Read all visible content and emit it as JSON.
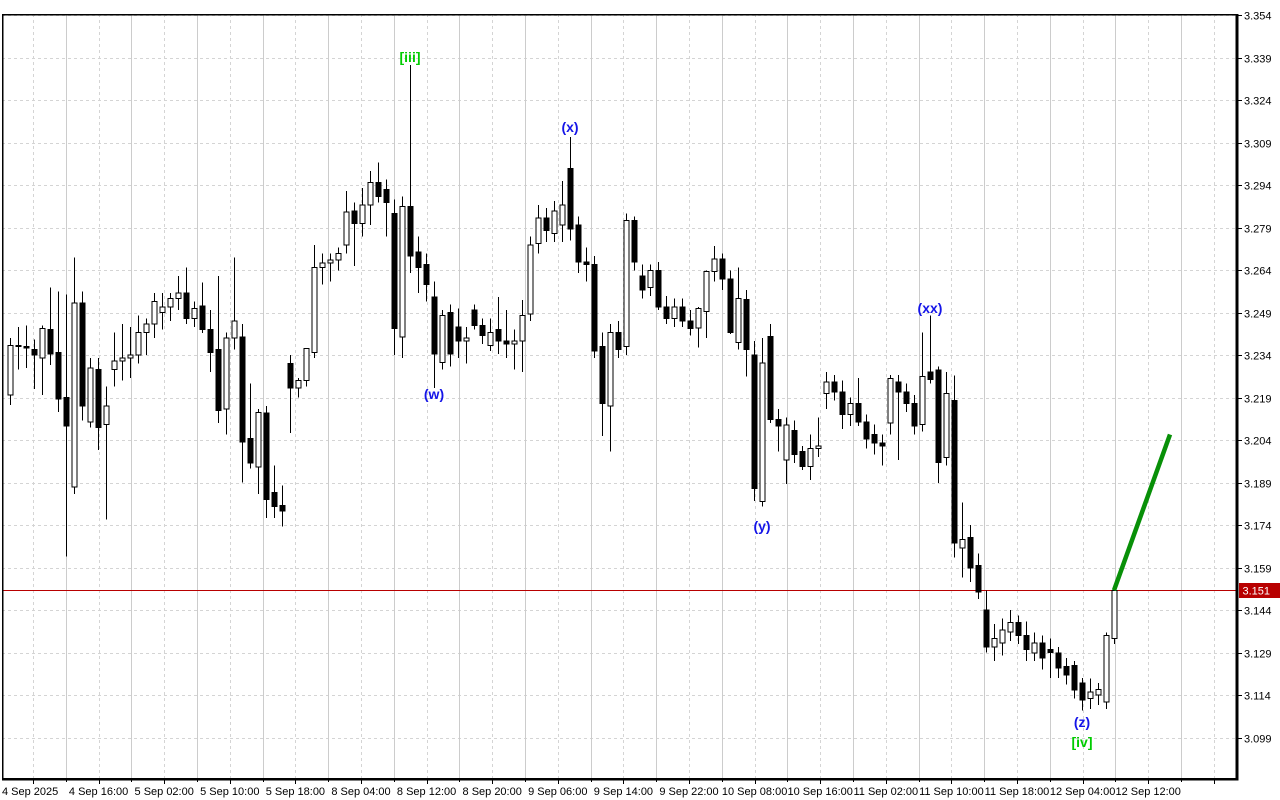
{
  "chart_data": {
    "type": "candlestick",
    "title": "",
    "platform_style": "metatrader",
    "colors": {
      "background": "#ffffff",
      "foreground": "#000000",
      "grid": "#d4d4d4",
      "grid_solid": "#cccccc",
      "bull_fill": "#ffffff",
      "bear_fill": "#000000",
      "candle_outline": "#000000",
      "price_line": "#b80000",
      "price_tag_bg": "#b80000",
      "price_tag_text": "#ffffff",
      "trend_line": "#089008",
      "wave_blue": "#1414e8",
      "wave_green": "#00cc00"
    },
    "y_axis": {
      "side": "right",
      "step": 0.015,
      "tick_labels": [
        "3.354",
        "3.339",
        "3.324",
        "3.309",
        "3.294",
        "3.279",
        "3.264",
        "3.249",
        "3.234",
        "3.219",
        "3.204",
        "3.189",
        "3.174",
        "3.159",
        "3.144",
        "3.129",
        "3.114",
        "3.099"
      ],
      "ylim": [
        3.0847,
        3.3545
      ]
    },
    "x_axis": {
      "tick_labels": [
        "4 Sep 2025",
        "4 Sep 16:00",
        "5 Sep 02:00",
        "5 Sep 10:00",
        "5 Sep 18:00",
        "8 Sep 04:00",
        "8 Sep 12:00",
        "8 Sep 20:00",
        "9 Sep 06:00",
        "9 Sep 14:00",
        "9 Sep 22:00",
        "10 Sep 08:00",
        "10 Sep 16:00",
        "11 Sep 02:00",
        "11 Sep 10:00",
        "11 Sep 18:00",
        "12 Sep 04:00",
        "12 Sep 12:00"
      ]
    },
    "grid": {
      "horizontal": "dashed-at-every-price-label",
      "vertical_spacing_px": 32.8,
      "visible": true
    },
    "price_line": {
      "price": 3.151,
      "label": "3.151"
    },
    "trend_line": {
      "from_candle": 138,
      "from_price": 3.151,
      "to_candle": 145,
      "to_price": 3.206,
      "width": 4.5
    },
    "wave_labels": [
      {
        "text": "[iii]",
        "candle": 50,
        "y": 57,
        "palette": "wave_green"
      },
      {
        "text": "(w)",
        "candle": 53,
        "y": 394,
        "palette": "wave_blue"
      },
      {
        "text": "(x)",
        "candle": 70,
        "y": 127,
        "palette": "wave_blue"
      },
      {
        "text": "(y)",
        "candle": 94,
        "y": 526,
        "palette": "wave_blue"
      },
      {
        "text": "(xx)",
        "candle": 115,
        "y": 308,
        "palette": "wave_blue"
      },
      {
        "text": "(z)",
        "candle": 134,
        "y": 722,
        "palette": "wave_blue"
      },
      {
        "text": "[iv]",
        "candle": 134,
        "y": 742,
        "palette": "wave_green"
      }
    ],
    "candles_format": [
      "open",
      "high",
      "low",
      "close"
    ],
    "candles": [
      [
        3.22,
        3.24,
        3.2165,
        3.2375
      ],
      [
        3.2375,
        3.244,
        3.229,
        3.237
      ],
      [
        3.237,
        3.2445,
        3.2295,
        3.2365
      ],
      [
        3.236,
        3.2395,
        3.222,
        3.234
      ],
      [
        3.233,
        3.2445,
        3.22,
        3.2435
      ],
      [
        3.243,
        3.258,
        3.2305,
        3.2345
      ],
      [
        3.235,
        3.2565,
        3.214,
        3.2185
      ],
      [
        3.219,
        3.2555,
        3.163,
        3.209
      ],
      [
        3.1875,
        3.2685,
        3.185,
        3.2525
      ],
      [
        3.2525,
        3.2565,
        3.211,
        3.216
      ],
      [
        3.2105,
        3.233,
        3.2085,
        3.2295
      ],
      [
        3.229,
        3.233,
        3.2005,
        3.2085
      ],
      [
        3.2095,
        3.223,
        3.176,
        3.216
      ],
      [
        3.229,
        3.242,
        3.223,
        3.232
      ],
      [
        3.232,
        3.245,
        3.225,
        3.233
      ],
      [
        3.233,
        3.244,
        3.226,
        3.234
      ],
      [
        3.234,
        3.248,
        3.231,
        3.242
      ],
      [
        3.242,
        3.247,
        3.234,
        3.245
      ],
      [
        3.245,
        3.256,
        3.24,
        3.253
      ],
      [
        3.249,
        3.256,
        3.243,
        3.251
      ],
      [
        3.251,
        3.256,
        3.246,
        3.254
      ],
      [
        3.254,
        3.262,
        3.25,
        3.256
      ],
      [
        3.256,
        3.265,
        3.245,
        3.247
      ],
      [
        3.247,
        3.253,
        3.244,
        3.2505
      ],
      [
        3.2513,
        3.2596,
        3.2418,
        3.243
      ],
      [
        3.243,
        3.25,
        3.228,
        3.235
      ],
      [
        3.236,
        3.262,
        3.21,
        3.2145
      ],
      [
        3.215,
        3.242,
        3.206,
        3.24
      ],
      [
        3.24,
        3.2685,
        3.236,
        3.246
      ],
      [
        3.2404,
        3.245,
        3.189,
        3.2034
      ],
      [
        3.2046,
        3.224,
        3.194,
        3.196
      ],
      [
        3.1946,
        3.215,
        3.185,
        3.2137
      ],
      [
        3.2136,
        3.216,
        3.1766,
        3.183
      ],
      [
        3.1855,
        3.195,
        3.1766,
        3.1805
      ],
      [
        3.181,
        3.188,
        3.1735,
        3.179
      ],
      [
        3.231,
        3.234,
        3.2065,
        3.2225
      ],
      [
        3.2225,
        3.226,
        3.219,
        3.225
      ],
      [
        3.225,
        3.234,
        3.223,
        3.2364
      ],
      [
        3.235,
        3.273,
        3.233,
        3.265
      ],
      [
        3.265,
        3.27,
        3.259,
        3.2665
      ],
      [
        3.2665,
        3.27,
        3.26,
        3.2677
      ],
      [
        3.2677,
        3.272,
        3.264,
        3.27
      ],
      [
        3.273,
        3.292,
        3.27,
        3.2845
      ],
      [
        3.285,
        3.288,
        3.2655,
        3.2805
      ],
      [
        3.2805,
        3.293,
        3.276,
        3.287
      ],
      [
        3.287,
        3.299,
        3.28,
        3.295
      ],
      [
        3.295,
        3.302,
        3.288,
        3.29
      ],
      [
        3.2925,
        3.296,
        3.276,
        3.288
      ],
      [
        3.284,
        3.289,
        3.234,
        3.2435
      ],
      [
        3.2405,
        3.29,
        3.233,
        3.2865
      ],
      [
        3.2865,
        3.3365,
        3.263,
        3.269
      ],
      [
        3.2705,
        3.276,
        3.256,
        3.265
      ],
      [
        3.266,
        3.27,
        3.253,
        3.259
      ],
      [
        3.2545,
        3.26,
        3.2225,
        3.2345
      ],
      [
        3.2315,
        3.25,
        3.229,
        3.248
      ],
      [
        3.249,
        3.252,
        3.23,
        3.2345
      ],
      [
        3.244,
        3.2505,
        3.233,
        3.239
      ],
      [
        3.239,
        3.244,
        3.231,
        3.24
      ],
      [
        3.25,
        3.252,
        3.243,
        3.2445
      ],
      [
        3.2445,
        3.247,
        3.238,
        3.241
      ],
      [
        3.2375,
        3.247,
        3.2355,
        3.242
      ],
      [
        3.243,
        3.2545,
        3.2345,
        3.239
      ],
      [
        3.239,
        3.25,
        3.233,
        3.238
      ],
      [
        3.238,
        3.243,
        3.229,
        3.239
      ],
      [
        3.239,
        3.2535,
        3.228,
        3.248
      ],
      [
        3.2485,
        3.276,
        3.246,
        3.273
      ],
      [
        3.2735,
        3.287,
        3.27,
        3.2825
      ],
      [
        3.2825,
        3.286,
        3.274,
        3.278
      ],
      [
        3.277,
        3.2885,
        3.274,
        3.285
      ],
      [
        3.28,
        3.2955,
        3.274,
        3.287
      ],
      [
        3.3,
        3.311,
        3.2745,
        3.2785
      ],
      [
        3.28,
        3.283,
        3.263,
        3.267
      ],
      [
        3.267,
        3.272,
        3.26,
        3.266
      ],
      [
        3.266,
        3.269,
        3.233,
        3.2355
      ],
      [
        3.237,
        3.242,
        3.2055,
        3.217
      ],
      [
        3.216,
        3.245,
        3.2,
        3.242
      ],
      [
        3.242,
        3.246,
        3.233,
        3.236
      ],
      [
        3.237,
        3.284,
        3.234,
        3.2815
      ],
      [
        3.2815,
        3.283,
        3.264,
        3.267
      ],
      [
        3.262,
        3.266,
        3.254,
        3.257
      ],
      [
        3.258,
        3.266,
        3.255,
        3.264
      ],
      [
        3.264,
        3.267,
        3.25,
        3.251
      ],
      [
        3.251,
        3.255,
        3.245,
        3.247
      ],
      [
        3.247,
        3.254,
        3.244,
        3.251
      ],
      [
        3.251,
        3.254,
        3.244,
        3.246
      ],
      [
        3.246,
        3.25,
        3.241,
        3.2435
      ],
      [
        3.2437,
        3.251,
        3.2367,
        3.2505
      ],
      [
        3.2494,
        3.264,
        3.24,
        3.2635
      ],
      [
        3.2635,
        3.2725,
        3.26,
        3.268
      ],
      [
        3.268,
        3.27,
        3.257,
        3.261
      ],
      [
        3.261,
        3.264,
        3.2415,
        3.242
      ],
      [
        3.2385,
        3.265,
        3.236,
        3.254
      ],
      [
        3.2536,
        3.257,
        3.2264,
        3.236
      ],
      [
        3.234,
        3.239,
        3.1825,
        3.187
      ],
      [
        3.1823,
        3.24,
        3.1806,
        3.2313
      ],
      [
        3.2406,
        3.245,
        3.21,
        3.2113
      ],
      [
        3.2113,
        3.215,
        3.2,
        3.209
      ],
      [
        3.197,
        3.212,
        3.1885,
        3.2093
      ],
      [
        3.2075,
        3.211,
        3.196,
        3.199
      ],
      [
        3.2,
        3.202,
        3.1934,
        3.1947
      ],
      [
        3.1947,
        3.206,
        3.19,
        3.201
      ],
      [
        3.201,
        3.212,
        3.198,
        3.202
      ],
      [
        3.2205,
        3.228,
        3.215,
        3.2245
      ],
      [
        3.2245,
        3.227,
        3.218,
        3.221
      ],
      [
        3.221,
        3.225,
        3.208,
        3.213
      ],
      [
        3.213,
        3.219,
        3.209,
        3.217
      ],
      [
        3.217,
        3.226,
        3.209,
        3.2105
      ],
      [
        3.2105,
        3.213,
        3.201,
        3.2045
      ],
      [
        3.206,
        3.2095,
        3.199,
        3.203
      ],
      [
        3.203,
        3.206,
        3.195,
        3.202
      ],
      [
        3.21,
        3.227,
        3.206,
        3.2258
      ],
      [
        3.2245,
        3.227,
        3.197,
        3.221
      ],
      [
        3.221,
        3.224,
        3.214,
        3.217
      ],
      [
        3.217,
        3.22,
        3.206,
        3.209
      ],
      [
        3.2095,
        3.242,
        3.207,
        3.2265
      ],
      [
        3.228,
        3.248,
        3.224,
        3.2255
      ],
      [
        3.2287,
        3.23,
        3.1888,
        3.1962
      ],
      [
        3.1979,
        3.228,
        3.195,
        3.2205
      ],
      [
        3.218,
        3.2269,
        3.1625,
        3.1676
      ],
      [
        3.166,
        3.182,
        3.1555,
        3.169
      ],
      [
        3.1697,
        3.174,
        3.154,
        3.1588
      ],
      [
        3.1598,
        3.164,
        3.148,
        3.1503
      ],
      [
        3.144,
        3.151,
        3.129,
        3.131
      ],
      [
        3.131,
        3.139,
        3.126,
        3.134
      ],
      [
        3.1323,
        3.141,
        3.128,
        3.1369
      ],
      [
        3.1362,
        3.144,
        3.133,
        3.1397
      ],
      [
        3.1397,
        3.142,
        3.132,
        3.135
      ],
      [
        3.135,
        3.14,
        3.126,
        3.13
      ],
      [
        3.1288,
        3.136,
        3.126,
        3.1323
      ],
      [
        3.1323,
        3.135,
        3.123,
        3.127
      ],
      [
        3.13,
        3.134,
        3.12,
        3.129
      ],
      [
        3.1288,
        3.131,
        3.12,
        3.1236
      ],
      [
        3.124,
        3.127,
        3.1178,
        3.121
      ],
      [
        3.1245,
        3.126,
        3.1128,
        3.1157
      ],
      [
        3.1182,
        3.12,
        3.1086,
        3.1122
      ],
      [
        3.1128,
        3.1199,
        3.109,
        3.115
      ],
      [
        3.114,
        3.1182,
        3.1105,
        3.116
      ],
      [
        3.1115,
        3.136,
        3.109,
        3.1351
      ],
      [
        3.1339,
        3.1515,
        3.132,
        3.151
      ]
    ]
  }
}
